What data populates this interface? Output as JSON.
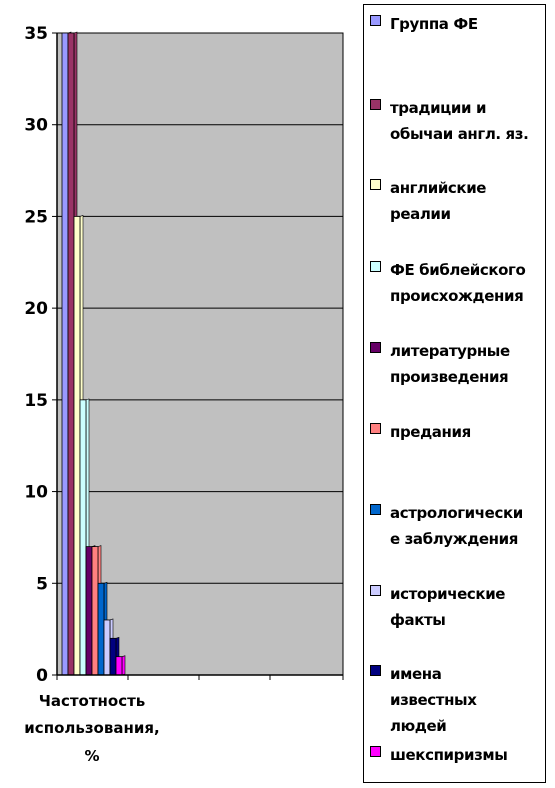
{
  "chart_data": {
    "type": "bar",
    "categories": [
      "Частотность использования, %"
    ],
    "series": [
      {
        "name": "Группа ФЕ",
        "values": [
          35
        ],
        "color": "#9999FF"
      },
      {
        "name": "традиции и обычаи англ. яз.",
        "values": [
          35
        ],
        "color": "#993366"
      },
      {
        "name": "английские реалии",
        "values": [
          25
        ],
        "color": "#FFFFCC"
      },
      {
        "name": "ФЕ библейского происхождения",
        "values": [
          15
        ],
        "color": "#CCFFFF"
      },
      {
        "name": "литературные произведения",
        "values": [
          7
        ],
        "color": "#660066"
      },
      {
        "name": "предания",
        "values": [
          7
        ],
        "color": "#FF8080"
      },
      {
        "name": "астрологически е заблуждения",
        "values": [
          5
        ],
        "color": "#0066CC"
      },
      {
        "name": "исторические факты",
        "values": [
          3
        ],
        "color": "#CCCCFF"
      },
      {
        "name": "имена известных людей",
        "values": [
          2
        ],
        "color": "#000080"
      },
      {
        "name": "шекспиризмы",
        "values": [
          1
        ],
        "color": "#FF00FF"
      }
    ],
    "ylim": [
      0,
      35
    ],
    "yticks": [
      "0",
      "5",
      "10",
      "15",
      "20",
      "25",
      "30",
      "35"
    ],
    "category_label_lines": [
      "Частотность",
      "использования,",
      "%"
    ],
    "grid": true,
    "plot_background": "#C0C0C0",
    "legend_position": "right"
  },
  "legend_lines": [
    [
      "Группа ФЕ"
    ],
    [
      "традиции и",
      "обычаи англ. яз."
    ],
    [
      "английские",
      "реалии"
    ],
    [
      "ФЕ библейского",
      "происхождения"
    ],
    [
      "литературные",
      "произведения"
    ],
    [
      "предания"
    ],
    [
      "астрологически",
      "е заблуждения"
    ],
    [
      "исторические",
      "факты"
    ],
    [
      "имена",
      "известных",
      "людей"
    ],
    [
      "шекспиризмы"
    ]
  ]
}
